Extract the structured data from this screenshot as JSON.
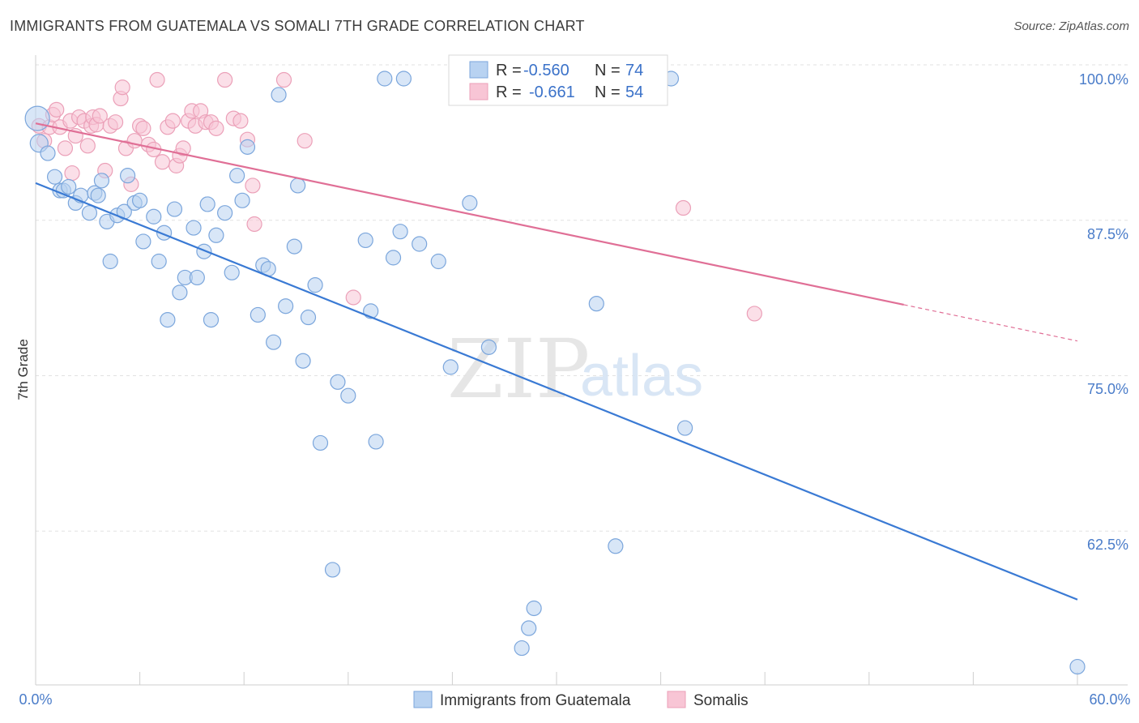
{
  "header": {
    "title": "IMMIGRANTS FROM GUATEMALA VS SOMALI 7TH GRADE CORRELATION CHART",
    "source": "Source: ZipAtlas.com"
  },
  "watermark": {
    "zip": "ZIP",
    "atlas": "atlas"
  },
  "legend": {
    "rows": [
      {
        "r_label": "R =",
        "r_value": "-0.560",
        "n_label": "N =",
        "n_value": "74"
      },
      {
        "r_label": "R =",
        "r_value": "-0.661",
        "n_label": "N =",
        "n_value": "54"
      }
    ]
  },
  "bottom_legend": {
    "guatemala": "Immigrants from Guatemala",
    "somalis": "Somalis"
  },
  "axes": {
    "ylabel": "7th Grade",
    "x_ticks": [
      "0.0%",
      "60.0%"
    ],
    "y_ticks": [
      "100.0%",
      "87.5%",
      "75.0%",
      "62.5%"
    ]
  },
  "colors": {
    "blue_fill": "#b8d2f1",
    "blue_stroke": "#7ba6dc",
    "blue_line": "#3a7ad4",
    "pink_fill": "#f8c5d5",
    "pink_stroke": "#eba0b8",
    "pink_line": "#e06f96"
  },
  "chart_data": {
    "type": "scatter",
    "title": "IMMIGRANTS FROM GUATEMALA VS SOMALI 7TH GRADE CORRELATION CHART",
    "xlabel": "",
    "ylabel": "7th Grade",
    "xlim": [
      0,
      60
    ],
    "ylim": [
      52.5,
      101
    ],
    "grid": true,
    "series": [
      {
        "name": "Immigrants from Guatemala",
        "r": -0.56,
        "n": 74,
        "trend": {
          "x": [
            0,
            60
          ],
          "y": [
            91.6,
            58.1
          ]
        },
        "points": [
          [
            0.1,
            96.8
          ],
          [
            0.2,
            94.8
          ],
          [
            0.7,
            94.0
          ],
          [
            1.1,
            92.1
          ],
          [
            1.4,
            91.0
          ],
          [
            1.6,
            91.0
          ],
          [
            1.9,
            91.3
          ],
          [
            2.3,
            90.0
          ],
          [
            2.6,
            90.6
          ],
          [
            3.1,
            89.2
          ],
          [
            3.4,
            90.8
          ],
          [
            3.6,
            90.6
          ],
          [
            3.8,
            91.8
          ],
          [
            4.1,
            88.5
          ],
          [
            4.3,
            85.3
          ],
          [
            4.7,
            89.0
          ],
          [
            5.1,
            89.3
          ],
          [
            5.3,
            92.2
          ],
          [
            5.7,
            90.0
          ],
          [
            6.0,
            90.2
          ],
          [
            6.2,
            86.9
          ],
          [
            6.8,
            88.9
          ],
          [
            7.1,
            85.3
          ],
          [
            7.4,
            87.6
          ],
          [
            7.6,
            80.6
          ],
          [
            8.0,
            89.5
          ],
          [
            8.3,
            82.8
          ],
          [
            8.6,
            84.0
          ],
          [
            9.1,
            88.0
          ],
          [
            9.3,
            84.0
          ],
          [
            9.7,
            86.1
          ],
          [
            9.9,
            89.9
          ],
          [
            10.1,
            80.6
          ],
          [
            10.4,
            87.4
          ],
          [
            10.9,
            89.2
          ],
          [
            11.3,
            84.4
          ],
          [
            11.6,
            92.2
          ],
          [
            11.9,
            90.2
          ],
          [
            12.2,
            94.5
          ],
          [
            12.8,
            81.0
          ],
          [
            13.1,
            85.0
          ],
          [
            13.4,
            84.7
          ],
          [
            13.7,
            78.8
          ],
          [
            14.0,
            98.7
          ],
          [
            14.4,
            81.7
          ],
          [
            14.9,
            86.5
          ],
          [
            15.1,
            91.4
          ],
          [
            15.4,
            77.3
          ],
          [
            15.7,
            80.8
          ],
          [
            16.1,
            83.4
          ],
          [
            16.4,
            70.7
          ],
          [
            17.1,
            60.5
          ],
          [
            17.4,
            75.6
          ],
          [
            18.0,
            74.5
          ],
          [
            19.0,
            87.0
          ],
          [
            19.3,
            81.3
          ],
          [
            19.6,
            70.8
          ],
          [
            20.1,
            100.0
          ],
          [
            20.6,
            85.6
          ],
          [
            21.0,
            87.7
          ],
          [
            21.2,
            100.0
          ],
          [
            22.1,
            86.7
          ],
          [
            23.2,
            85.3
          ],
          [
            23.9,
            76.8
          ],
          [
            25.0,
            90.0
          ],
          [
            26.1,
            78.4
          ],
          [
            28.0,
            54.2
          ],
          [
            28.4,
            55.8
          ],
          [
            28.7,
            57.4
          ],
          [
            32.3,
            81.9
          ],
          [
            33.4,
            62.4
          ],
          [
            36.6,
            100.0
          ],
          [
            37.4,
            71.9
          ],
          [
            60.0,
            52.7
          ]
        ]
      },
      {
        "name": "Somalis",
        "r": -0.661,
        "n": 54,
        "trend": {
          "x": [
            0,
            60
          ],
          "y": [
            96.4,
            78.9
          ],
          "solid_until_x": 50
        },
        "points": [
          [
            0.2,
            96.2
          ],
          [
            0.5,
            95.0
          ],
          [
            0.8,
            96.1
          ],
          [
            1.0,
            97.1
          ],
          [
            1.2,
            97.5
          ],
          [
            1.4,
            96.1
          ],
          [
            1.7,
            94.4
          ],
          [
            2.0,
            96.6
          ],
          [
            2.1,
            92.4
          ],
          [
            2.3,
            95.4
          ],
          [
            2.5,
            96.9
          ],
          [
            2.8,
            96.6
          ],
          [
            3.0,
            94.6
          ],
          [
            3.2,
            96.2
          ],
          [
            3.3,
            96.9
          ],
          [
            3.5,
            96.3
          ],
          [
            3.7,
            97.0
          ],
          [
            4.0,
            92.6
          ],
          [
            4.3,
            96.2
          ],
          [
            4.6,
            96.5
          ],
          [
            4.9,
            98.4
          ],
          [
            5.0,
            99.3
          ],
          [
            5.2,
            94.4
          ],
          [
            5.5,
            91.5
          ],
          [
            5.7,
            95.0
          ],
          [
            6.0,
            96.2
          ],
          [
            6.2,
            96.0
          ],
          [
            6.5,
            94.7
          ],
          [
            6.8,
            94.3
          ],
          [
            7.0,
            99.9
          ],
          [
            7.3,
            93.3
          ],
          [
            7.6,
            96.1
          ],
          [
            7.9,
            96.6
          ],
          [
            8.1,
            93.0
          ],
          [
            8.3,
            93.8
          ],
          [
            8.5,
            94.4
          ],
          [
            8.8,
            96.6
          ],
          [
            9.0,
            97.4
          ],
          [
            9.2,
            96.2
          ],
          [
            9.5,
            97.4
          ],
          [
            9.8,
            96.5
          ],
          [
            10.1,
            96.5
          ],
          [
            10.4,
            96.0
          ],
          [
            10.9,
            99.9
          ],
          [
            11.4,
            96.8
          ],
          [
            11.8,
            96.6
          ],
          [
            12.2,
            95.1
          ],
          [
            12.5,
            91.4
          ],
          [
            12.6,
            88.3
          ],
          [
            14.3,
            99.9
          ],
          [
            15.5,
            95.0
          ],
          [
            18.3,
            82.4
          ],
          [
            37.3,
            89.6
          ],
          [
            41.4,
            81.1
          ]
        ]
      }
    ]
  }
}
